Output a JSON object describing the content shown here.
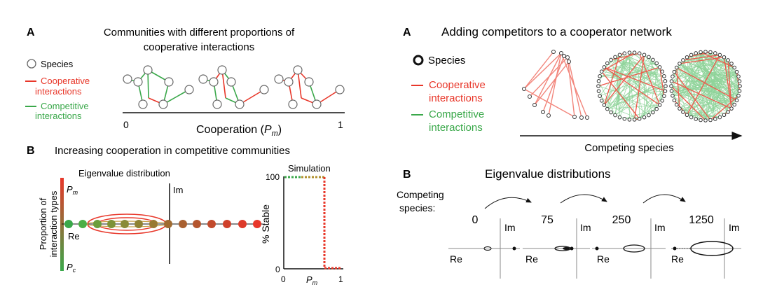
{
  "left": {
    "panelA": {
      "letter": "A",
      "title_line1": "Communities with different proportions of",
      "title_line2": "cooperative interactions",
      "legend_species": "Species",
      "legend_coop_1": "Cooperative",
      "legend_coop_2": "interactions",
      "legend_comp_1": "Competitive",
      "legend_comp_2": "interactions",
      "axis_start": "0",
      "axis_end": "1",
      "axis_label": "Cooperation (",
      "axis_label_var": "P",
      "axis_label_sub": "m",
      "axis_label_close": ")"
    },
    "panelB": {
      "letter": "B",
      "title": "Increasing cooperation in competitive communities",
      "eigen_label": "Eigenvalue distribution",
      "im_label": "Im",
      "re_label": "Re",
      "pm_var": "P",
      "pm_sub": "m",
      "pc_var": "P",
      "pc_sub": "c",
      "yaxis_line1": "Proportion of",
      "yaxis_line2": "interaction types",
      "sim_title": "Simulation",
      "sim_ylabel": "% Stable",
      "sim_y100": "100",
      "sim_y0": "0",
      "sim_x0": "0",
      "sim_x1": "1",
      "sim_xvar": "P",
      "sim_xsub": "m"
    }
  },
  "right": {
    "panelA": {
      "letter": "A",
      "title": "Adding competitors to a cooperator network",
      "legend_species": "Species",
      "legend_coop_1": "Cooperative",
      "legend_coop_2": "interactions",
      "legend_comp_1": "Competitive",
      "legend_comp_2": "interactions",
      "axis_label": "Competing species"
    },
    "panelB": {
      "letter": "B",
      "title": "Eigenvalue distributions",
      "competing_1": "Competing",
      "competing_2": "species:",
      "values": [
        "0",
        "75",
        "250",
        "1250"
      ],
      "im_label": "Im",
      "re_label": "Re"
    }
  },
  "colors": {
    "cooperative": "#e8372a",
    "competitive": "#3aa84a",
    "coop_light": "#f2857b",
    "comp_light": "#8fd39a"
  }
}
